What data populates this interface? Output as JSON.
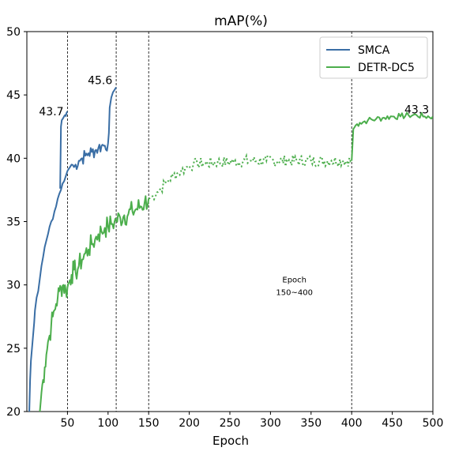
{
  "chart_data": {
    "type": "line",
    "title": "mAP(%)",
    "xlabel": "Epoch",
    "ylabel": "",
    "xlim": [
      0,
      500
    ],
    "ylim": [
      20,
      50
    ],
    "xticks": [
      50,
      100,
      150,
      200,
      250,
      300,
      350,
      400,
      450,
      500
    ],
    "yticks": [
      20,
      25,
      30,
      35,
      40,
      45,
      50
    ],
    "vlines": [
      50,
      110,
      150,
      400
    ],
    "grid": false,
    "legend": {
      "placement": "top-right"
    },
    "series": [
      {
        "name": "SMCA",
        "color": "#3a6ea5",
        "style": "solid",
        "points": [
          [
            3,
            20.0
          ],
          [
            4,
            22.5
          ],
          [
            5,
            24.0
          ],
          [
            7,
            25.5
          ],
          [
            9,
            27.0
          ],
          [
            10,
            28.0
          ],
          [
            12,
            29.0
          ],
          [
            14,
            29.5
          ],
          [
            16,
            30.5
          ],
          [
            18,
            31.5
          ],
          [
            20,
            32.2
          ],
          [
            22,
            33.0
          ],
          [
            24,
            33.5
          ],
          [
            26,
            34.0
          ],
          [
            28,
            34.6
          ],
          [
            30,
            35.0
          ],
          [
            32,
            35.2
          ],
          [
            34,
            35.8
          ],
          [
            36,
            36.2
          ],
          [
            38,
            36.8
          ],
          [
            40,
            37.2
          ],
          [
            42,
            37.5
          ],
          [
            44,
            38.0
          ],
          [
            46,
            38.2
          ],
          [
            48,
            38.6
          ],
          [
            50,
            39.0
          ],
          [
            52,
            39.2
          ],
          [
            55,
            39.5
          ],
          [
            58,
            39.3
          ],
          [
            60,
            39.5
          ],
          [
            64,
            39.8
          ],
          [
            68,
            40.0
          ],
          [
            72,
            40.2
          ],
          [
            76,
            40.4
          ],
          [
            80,
            40.5
          ],
          [
            84,
            40.6
          ],
          [
            88,
            40.8
          ],
          [
            92,
            41.0
          ],
          [
            96,
            41.0
          ],
          [
            100,
            41.2
          ],
          [
            101,
            42.0
          ],
          [
            102,
            44.0
          ],
          [
            104,
            44.8
          ],
          [
            106,
            45.2
          ],
          [
            108,
            45.4
          ],
          [
            110,
            45.6
          ]
        ],
        "segment2": [
          [
            41,
            37.6
          ],
          [
            42,
            42.5
          ],
          [
            43,
            43.0
          ],
          [
            45,
            43.2
          ],
          [
            47,
            43.4
          ],
          [
            49,
            43.6
          ],
          [
            50,
            43.7
          ]
        ]
      },
      {
        "name": "DETR-DC5",
        "color": "#4cae4c",
        "style": "solid",
        "points": [
          [
            16,
            20.0
          ],
          [
            18,
            21.5
          ],
          [
            20,
            22.5
          ],
          [
            22,
            23.5
          ],
          [
            24,
            24.5
          ],
          [
            26,
            25.5
          ],
          [
            28,
            26.0
          ],
          [
            30,
            26.8
          ],
          [
            32,
            27.5
          ],
          [
            34,
            28.0
          ],
          [
            36,
            28.5
          ],
          [
            38,
            29.0
          ],
          [
            40,
            29.5
          ],
          [
            42,
            29.8
          ],
          [
            45,
            30.0
          ],
          [
            48,
            29.5
          ],
          [
            50,
            29.8
          ],
          [
            52,
            30.2
          ],
          [
            55,
            30.8
          ],
          [
            58,
            31.2
          ],
          [
            60,
            31.0
          ],
          [
            64,
            31.5
          ],
          [
            68,
            32.0
          ],
          [
            72,
            32.5
          ],
          [
            76,
            32.8
          ],
          [
            80,
            33.2
          ],
          [
            84,
            33.6
          ],
          [
            88,
            34.0
          ],
          [
            92,
            34.2
          ],
          [
            96,
            34.5
          ],
          [
            100,
            34.6
          ],
          [
            104,
            34.8
          ],
          [
            108,
            35.0
          ],
          [
            110,
            35.1
          ],
          [
            115,
            35.3
          ],
          [
            120,
            35.5
          ],
          [
            125,
            35.6
          ],
          [
            130,
            35.8
          ],
          [
            135,
            36.0
          ],
          [
            140,
            36.2
          ],
          [
            145,
            36.5
          ],
          [
            150,
            36.8
          ]
        ],
        "dotted": [
          [
            150,
            36.8
          ],
          [
            155,
            37.0
          ],
          [
            160,
            37.3
          ],
          [
            165,
            37.6
          ],
          [
            170,
            38.0
          ],
          [
            175,
            38.3
          ],
          [
            180,
            38.6
          ],
          [
            185,
            38.8
          ],
          [
            190,
            39.0
          ],
          [
            195,
            39.2
          ],
          [
            200,
            39.4
          ],
          [
            205,
            39.5
          ],
          [
            210,
            39.6
          ],
          [
            220,
            39.6
          ],
          [
            235,
            39.7
          ],
          [
            255,
            39.7
          ],
          [
            275,
            39.8
          ],
          [
            295,
            39.8
          ],
          [
            320,
            39.8
          ],
          [
            350,
            39.8
          ],
          [
            375,
            39.8
          ],
          [
            390,
            39.8
          ],
          [
            400,
            39.8
          ]
        ],
        "final": [
          [
            400,
            39.8
          ],
          [
            402,
            42.3
          ],
          [
            405,
            42.6
          ],
          [
            410,
            42.8
          ],
          [
            420,
            43.0
          ],
          [
            430,
            43.1
          ],
          [
            440,
            43.2
          ],
          [
            450,
            43.3
          ],
          [
            460,
            43.3
          ],
          [
            470,
            43.4
          ],
          [
            480,
            43.4
          ],
          [
            490,
            43.3
          ],
          [
            500,
            43.3
          ]
        ]
      }
    ],
    "annotations": [
      {
        "text": "43.7",
        "x": 50,
        "y": 43.7
      },
      {
        "text": "45.6",
        "x": 110,
        "y": 45.6
      },
      {
        "text": "43.3",
        "x": 500,
        "y": 43.3
      },
      {
        "text": "Epoch",
        "x": 275,
        "y": 30.2
      },
      {
        "text": "150~400",
        "x": 275,
        "y": 29.2
      }
    ]
  }
}
